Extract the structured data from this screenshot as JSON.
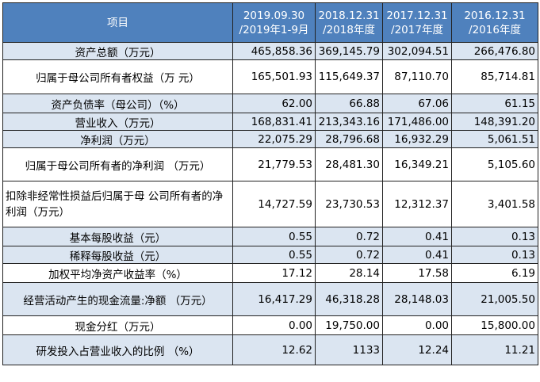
{
  "header": {
    "item": "项目",
    "periods": [
      {
        "line1": "2019.09.30",
        "line2": "/2019年1-9月"
      },
      {
        "line1": "2018.12.31",
        "line2": "/2018年度"
      },
      {
        "line1": "2017.12.31",
        "line2": "/2017年度"
      },
      {
        "line1": "2016.12.31",
        "line2": "/2016年度"
      }
    ]
  },
  "rows": [
    {
      "label": "资产总额（万元）",
      "values": [
        "465,858.36",
        "369,145.79",
        "302,094.51",
        "266,476.80"
      ]
    },
    {
      "label": "归属于母公司所有者权益（万 元）",
      "values": [
        "165,501.93",
        "115,649.37",
        "87,110.70",
        "85,714.81"
      ]
    },
    {
      "label": "资产负债率（母公司）（%）",
      "values": [
        "62.00",
        "66.88",
        "67.06",
        "61.15"
      ]
    },
    {
      "label": "营业收入（万元）",
      "values": [
        "168,831.41",
        "213,343.16",
        "171,486.00",
        "148,391.20"
      ]
    },
    {
      "label": "净利润（万元）",
      "values": [
        "22,075.29",
        "28,796.68",
        "16,932.29",
        "5,061.51"
      ]
    },
    {
      "label": "归属于母公司所有者的净利润 （万元）",
      "values": [
        "21,779.53",
        "28,481.30",
        "16,349.21",
        "5,105.60"
      ]
    },
    {
      "label": "扣除非经常性损益后归属于母 公司所有者的净利润（万元）",
      "values": [
        "14,727.59",
        "23,730.53",
        "12,312.37",
        "3,401.58"
      ]
    },
    {
      "label": "基本每股收益（元）",
      "values": [
        "0.55",
        "0.72",
        "0.41",
        "0.13"
      ]
    },
    {
      "label": "稀释每股收益（元）",
      "values": [
        "0.55",
        "0.72",
        "0.41",
        "0.13"
      ]
    },
    {
      "label": "加权平均净资产收益率（%）",
      "values": [
        "17.12",
        "28.14",
        "17.58",
        "6.19"
      ]
    },
    {
      "label": "经营活动产生的现金流量:净额 （万元）",
      "values": [
        "16,417.29",
        "46,318.28",
        "28,148.03",
        "21,005.50"
      ]
    },
    {
      "label": "现金分红（万元）",
      "values": [
        "0.00",
        "19,750.00",
        "0.00",
        "15,800.00"
      ]
    },
    {
      "label": "研发投入占营业收入的比例 （%）",
      "values": [
        "12.62",
        "1133",
        "12.24",
        "11.21"
      ]
    }
  ],
  "colors": {
    "header_bg": "#4f81bd",
    "shade_bg": "#dbe5f1",
    "border": "#222222"
  }
}
